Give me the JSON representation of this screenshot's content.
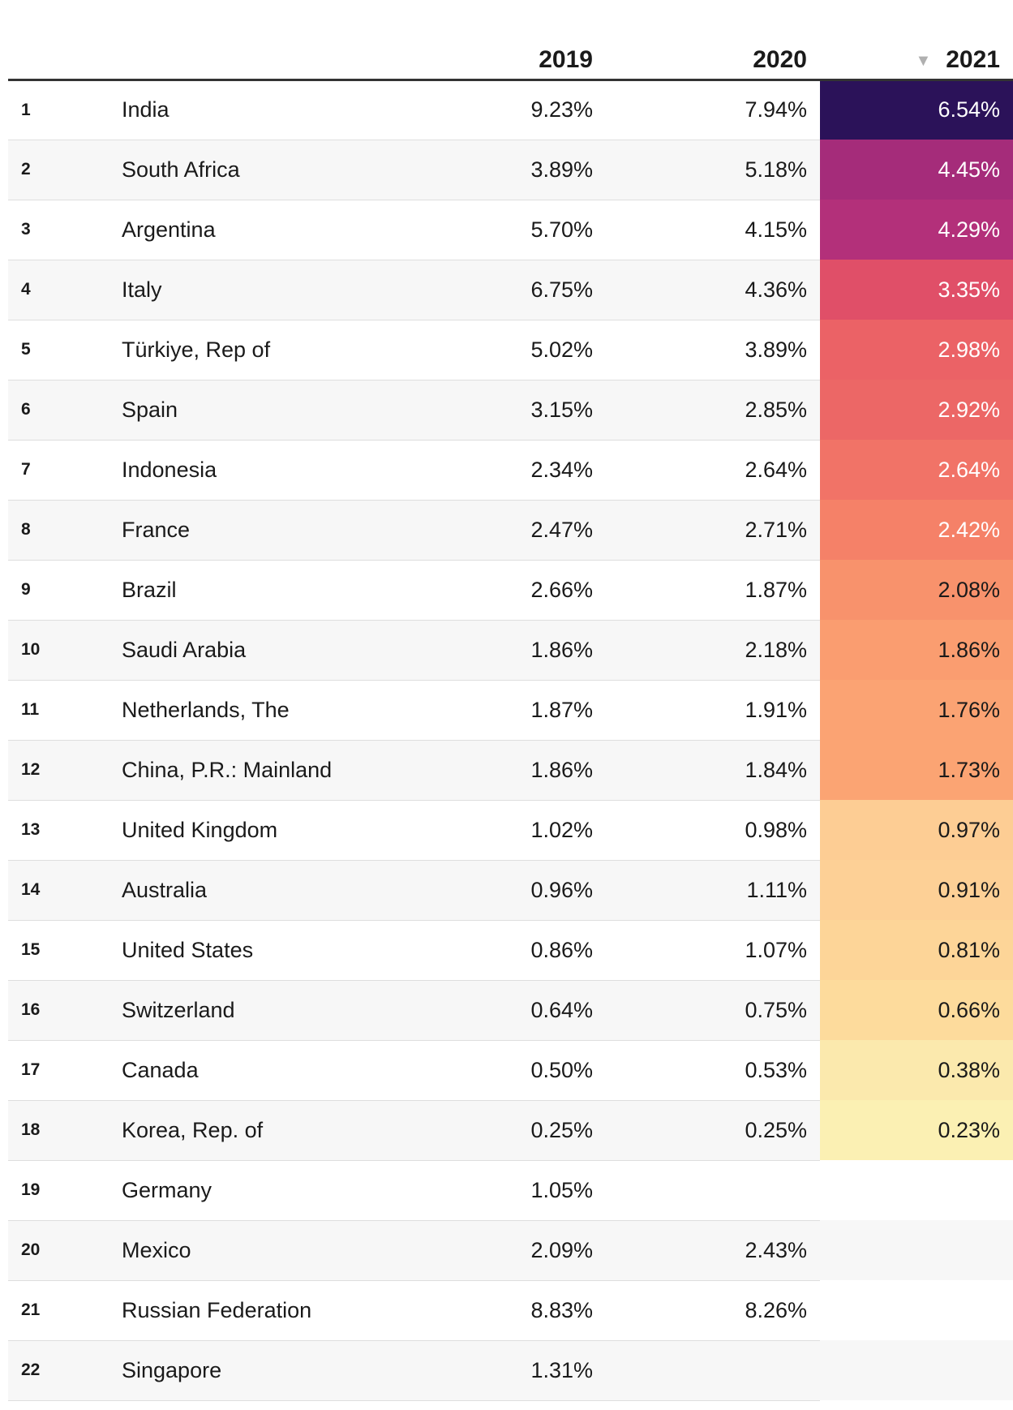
{
  "chart_data": {
    "type": "table",
    "columns": [
      "",
      "",
      "2019",
      "2020",
      "2021"
    ],
    "sorted_by": "2021",
    "sort_order": "descending",
    "sort_indicator": "▼",
    "rows": [
      {
        "rank": "1",
        "country": "India",
        "y2019": "9.23%",
        "y2020": "7.94%",
        "y2021": "6.54%",
        "v2021": 6.54,
        "color": "#2b1259",
        "text_color": "#ffffff"
      },
      {
        "rank": "2",
        "country": "South Africa",
        "y2019": "3.89%",
        "y2020": "5.18%",
        "y2021": "4.45%",
        "v2021": 4.45,
        "color": "#a52c7a",
        "text_color": "#ffffff"
      },
      {
        "rank": "3",
        "country": "Argentina",
        "y2019": "5.70%",
        "y2020": "4.15%",
        "y2021": "4.29%",
        "v2021": 4.29,
        "color": "#b3307a",
        "text_color": "#ffffff"
      },
      {
        "rank": "4",
        "country": "Italy",
        "y2019": "6.75%",
        "y2020": "4.36%",
        "y2021": "3.35%",
        "v2021": 3.35,
        "color": "#e04f68",
        "text_color": "#ffffff"
      },
      {
        "rank": "5",
        "country": "Türkiye, Rep of",
        "y2019": "5.02%",
        "y2020": "3.89%",
        "y2021": "2.98%",
        "v2021": 2.98,
        "color": "#eb6266",
        "text_color": "#ffffff"
      },
      {
        "rank": "6",
        "country": "Spain",
        "y2019": "3.15%",
        "y2020": "2.85%",
        "y2021": "2.92%",
        "v2021": 2.92,
        "color": "#ec6766",
        "text_color": "#ffffff"
      },
      {
        "rank": "7",
        "country": "Indonesia",
        "y2019": "2.34%",
        "y2020": "2.64%",
        "y2021": "2.64%",
        "v2021": 2.64,
        "color": "#f17367",
        "text_color": "#ffffff"
      },
      {
        "rank": "8",
        "country": "France",
        "y2019": "2.47%",
        "y2020": "2.71%",
        "y2021": "2.42%",
        "v2021": 2.42,
        "color": "#f58168",
        "text_color": "#ffffff"
      },
      {
        "rank": "9",
        "country": "Brazil",
        "y2019": "2.66%",
        "y2020": "1.87%",
        "y2021": "2.08%",
        "v2021": 2.08,
        "color": "#f8926c",
        "text_color": "#1a1a1a"
      },
      {
        "rank": "10",
        "country": "Saudi Arabia",
        "y2019": "1.86%",
        "y2020": "2.18%",
        "y2021": "1.86%",
        "v2021": 1.86,
        "color": "#fa9d70",
        "text_color": "#1a1a1a"
      },
      {
        "rank": "11",
        "country": "Netherlands, The",
        "y2019": "1.87%",
        "y2020": "1.91%",
        "y2021": "1.76%",
        "v2021": 1.76,
        "color": "#fba373",
        "text_color": "#1a1a1a"
      },
      {
        "rank": "12",
        "country": "China, P.R.: Mainland",
        "y2019": "1.86%",
        "y2020": "1.84%",
        "y2021": "1.73%",
        "v2021": 1.73,
        "color": "#fba473",
        "text_color": "#1a1a1a"
      },
      {
        "rank": "13",
        "country": "United Kingdom",
        "y2019": "1.02%",
        "y2020": "0.98%",
        "y2021": "0.97%",
        "v2021": 0.97,
        "color": "#fdcd94",
        "text_color": "#1a1a1a"
      },
      {
        "rank": "14",
        "country": "Australia",
        "y2019": "0.96%",
        "y2020": "1.11%",
        "y2021": "0.91%",
        "v2021": 0.91,
        "color": "#fdd096",
        "text_color": "#1a1a1a"
      },
      {
        "rank": "15",
        "country": "United States",
        "y2019": "0.86%",
        "y2020": "1.07%",
        "y2021": "0.81%",
        "v2021": 0.81,
        "color": "#fdd598",
        "text_color": "#1a1a1a"
      },
      {
        "rank": "16",
        "country": "Switzerland",
        "y2019": "0.64%",
        "y2020": "0.75%",
        "y2021": "0.66%",
        "v2021": 0.66,
        "color": "#fddb9c",
        "text_color": "#1a1a1a"
      },
      {
        "rank": "17",
        "country": "Canada",
        "y2019": "0.50%",
        "y2020": "0.53%",
        "y2021": "0.38%",
        "v2021": 0.38,
        "color": "#fbe9ad",
        "text_color": "#1a1a1a"
      },
      {
        "rank": "18",
        "country": "Korea, Rep. of",
        "y2019": "0.25%",
        "y2020": "0.25%",
        "y2021": "0.23%",
        "v2021": 0.23,
        "color": "#fbf0b3",
        "text_color": "#1a1a1a"
      },
      {
        "rank": "19",
        "country": "Germany",
        "y2019": "1.05%",
        "y2020": "",
        "y2021": "",
        "v2021": null,
        "color": "",
        "text_color": "#1a1a1a"
      },
      {
        "rank": "20",
        "country": "Mexico",
        "y2019": "2.09%",
        "y2020": "2.43%",
        "y2021": "",
        "v2021": null,
        "color": "",
        "text_color": "#1a1a1a"
      },
      {
        "rank": "21",
        "country": "Russian Federation",
        "y2019": "8.83%",
        "y2020": "8.26%",
        "y2021": "",
        "v2021": null,
        "color": "",
        "text_color": "#1a1a1a"
      },
      {
        "rank": "22",
        "country": "Singapore",
        "y2019": "1.31%",
        "y2020": "",
        "y2021": "",
        "v2021": null,
        "color": "",
        "text_color": "#1a1a1a"
      }
    ]
  }
}
